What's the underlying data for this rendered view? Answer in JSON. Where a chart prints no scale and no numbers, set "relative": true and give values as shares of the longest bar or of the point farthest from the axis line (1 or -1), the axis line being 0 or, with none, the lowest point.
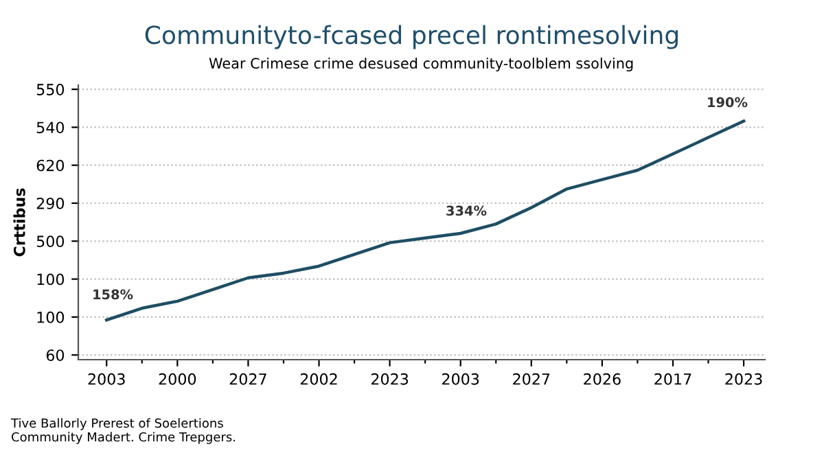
{
  "chart_data": {
    "type": "line",
    "title": "Communityto-fcased precel rontimesolving",
    "subtitle": "Wear Crimese crime desused community-toolblem ssolving",
    "ylabel": "Crttibus",
    "relative": true,
    "categories": [
      "2003",
      null,
      "2000",
      null,
      "2027",
      null,
      "2002",
      null,
      "2023",
      null,
      "2003",
      null,
      "2027",
      null,
      "2026",
      null,
      "2017",
      null,
      "2023"
    ],
    "series": [
      {
        "color": "#1f4e63",
        "values": [
          0.15,
          0.2,
          0.23,
          0.28,
          0.33,
          0.35,
          0.38,
          0.43,
          0.48,
          0.5,
          0.52,
          0.56,
          0.63,
          0.71,
          0.75,
          0.79,
          0.86,
          0.93,
          1
        ]
      }
    ],
    "grid": "y",
    "line_style": "solid",
    "marker": "none",
    "annotations": [
      "60",
      "100",
      "100",
      "500",
      "290",
      "620",
      "540",
      "550",
      "158%",
      "334%",
      "190%",
      "Tive Ballorly Prerest of Soelertions\nCommunity Madert. Crime Trepgers."
    ]
  }
}
